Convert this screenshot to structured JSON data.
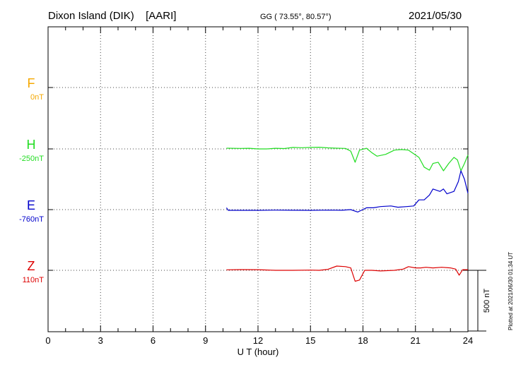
{
  "header": {
    "station": "Dixon Island (DIK)",
    "org": "[AARI]",
    "coords": "GG ( 73.55°,  80.57°)",
    "date": "2021/05/30"
  },
  "plotted_note": "Plotted at 2021/06/30 01:34 UT",
  "chart_data": {
    "type": "line",
    "xlabel": "U T (hour)",
    "xlim": [
      0,
      24
    ],
    "xticks": [
      0,
      3,
      6,
      9,
      12,
      15,
      18,
      21,
      24
    ],
    "scale_bar_label": "500 nT",
    "scale_bar_nT": 500,
    "channels": [
      {
        "name": "F",
        "baseline_label": "0nT",
        "color": "#f5a800",
        "data": []
      },
      {
        "name": "H",
        "baseline_label": "-250nT",
        "color": "#22dd22",
        "data": [
          [
            10.2,
            -6
          ],
          [
            11.0,
            -4
          ],
          [
            11.5,
            -5
          ],
          [
            12.0,
            0
          ],
          [
            12.5,
            0
          ],
          [
            13.0,
            -5
          ],
          [
            13.5,
            -3
          ],
          [
            14.0,
            -12
          ],
          [
            14.5,
            -10
          ],
          [
            15.0,
            -12
          ],
          [
            15.5,
            -14
          ],
          [
            16.0,
            -9
          ],
          [
            16.5,
            -6
          ],
          [
            17.0,
            -4
          ],
          [
            17.3,
            18
          ],
          [
            17.55,
            110
          ],
          [
            17.8,
            10
          ],
          [
            18.2,
            -5
          ],
          [
            18.5,
            30
          ],
          [
            18.8,
            60
          ],
          [
            19.3,
            45
          ],
          [
            19.8,
            10
          ],
          [
            20.2,
            5
          ],
          [
            20.6,
            10
          ],
          [
            20.9,
            40
          ],
          [
            21.2,
            70
          ],
          [
            21.5,
            150
          ],
          [
            21.8,
            175
          ],
          [
            22.0,
            120
          ],
          [
            22.3,
            110
          ],
          [
            22.6,
            180
          ],
          [
            22.9,
            120
          ],
          [
            23.2,
            70
          ],
          [
            23.4,
            90
          ],
          [
            23.6,
            180
          ],
          [
            23.8,
            120
          ],
          [
            24.0,
            50
          ]
        ]
      },
      {
        "name": "E",
        "baseline_label": "-760nT",
        "color": "#0000cc",
        "data": [
          [
            10.2,
            -15
          ],
          [
            10.3,
            6
          ],
          [
            12.0,
            6
          ],
          [
            13.0,
            4
          ],
          [
            14.0,
            5
          ],
          [
            15.0,
            6
          ],
          [
            16.0,
            4
          ],
          [
            16.8,
            5
          ],
          [
            17.3,
            0
          ],
          [
            17.7,
            20
          ],
          [
            18.2,
            -15
          ],
          [
            18.6,
            -15
          ],
          [
            19.0,
            -25
          ],
          [
            19.6,
            -30
          ],
          [
            20.0,
            -20
          ],
          [
            20.5,
            -25
          ],
          [
            20.9,
            -30
          ],
          [
            21.2,
            -80
          ],
          [
            21.5,
            -80
          ],
          [
            21.8,
            -120
          ],
          [
            22.0,
            -170
          ],
          [
            22.4,
            -150
          ],
          [
            22.6,
            -170
          ],
          [
            22.8,
            -130
          ],
          [
            23.2,
            -150
          ],
          [
            23.45,
            -230
          ],
          [
            23.6,
            -320
          ],
          [
            23.8,
            -250
          ],
          [
            24.0,
            -135
          ]
        ]
      },
      {
        "name": "Z",
        "baseline_label": "110nT",
        "color": "#dd0000",
        "data": [
          [
            10.2,
            -4
          ],
          [
            11.0,
            -6
          ],
          [
            12.0,
            -5
          ],
          [
            13.0,
            0
          ],
          [
            14.0,
            0
          ],
          [
            15.0,
            -2
          ],
          [
            15.5,
            0
          ],
          [
            16.0,
            -8
          ],
          [
            16.5,
            -35
          ],
          [
            17.0,
            -30
          ],
          [
            17.3,
            -20
          ],
          [
            17.55,
            90
          ],
          [
            17.8,
            80
          ],
          [
            18.1,
            0
          ],
          [
            18.5,
            0
          ],
          [
            19.0,
            5
          ],
          [
            19.8,
            0
          ],
          [
            20.3,
            -10
          ],
          [
            20.6,
            -30
          ],
          [
            21.0,
            -20
          ],
          [
            21.3,
            -20
          ],
          [
            21.6,
            -25
          ],
          [
            22.0,
            -20
          ],
          [
            22.5,
            -25
          ],
          [
            23.0,
            -20
          ],
          [
            23.3,
            -10
          ],
          [
            23.5,
            40
          ],
          [
            23.7,
            -5
          ],
          [
            24.0,
            -5
          ]
        ]
      }
    ]
  }
}
